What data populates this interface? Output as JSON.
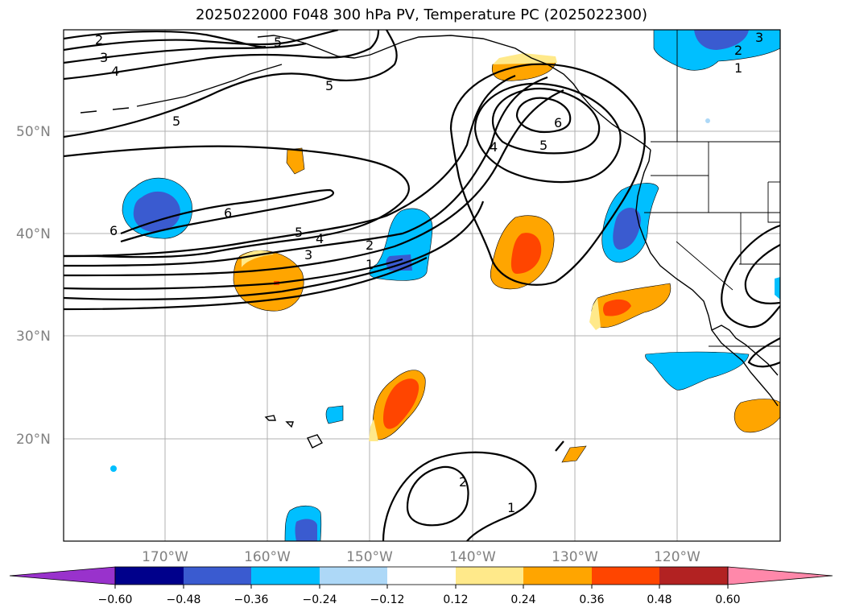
{
  "title": "2025022000 F048 300 hPa PV, Temperature PC (2025022300)",
  "map": {
    "lon_range": [
      -180,
      -110
    ],
    "lat_range": [
      10,
      60
    ],
    "lat_ticks": [
      {
        "value": 50,
        "label": "50°N"
      },
      {
        "value": 40,
        "label": "40°N"
      },
      {
        "value": 30,
        "label": "30°N"
      },
      {
        "value": 20,
        "label": "20°N"
      }
    ],
    "lon_ticks": [
      {
        "value": -170,
        "label": "170°W"
      },
      {
        "value": -160,
        "label": "160°W"
      },
      {
        "value": -150,
        "label": "150°W"
      },
      {
        "value": -140,
        "label": "140°W"
      },
      {
        "value": -130,
        "label": "130°W"
      },
      {
        "value": -120,
        "label": "120°W"
      }
    ],
    "contour_labels": [
      "2",
      "3",
      "4",
      "5",
      "5",
      "6",
      "6",
      "5",
      "4",
      "3",
      "2",
      "1",
      "4",
      "5",
      "6",
      "2",
      "1",
      "2",
      "3",
      "1",
      "5"
    ]
  },
  "colorbar": {
    "colors": [
      "#9932cc",
      "#00008b",
      "#3a5bd0",
      "#00bfff",
      "#add8f7",
      "#ffffff",
      "#ffe98a",
      "#ffa500",
      "#ff4500",
      "#b22222",
      "#ff88aa"
    ],
    "ticks": [
      "−0.60",
      "−0.48",
      "−0.36",
      "−0.24",
      "−0.12",
      "0.12",
      "0.24",
      "0.36",
      "0.48",
      "0.60"
    ]
  }
}
